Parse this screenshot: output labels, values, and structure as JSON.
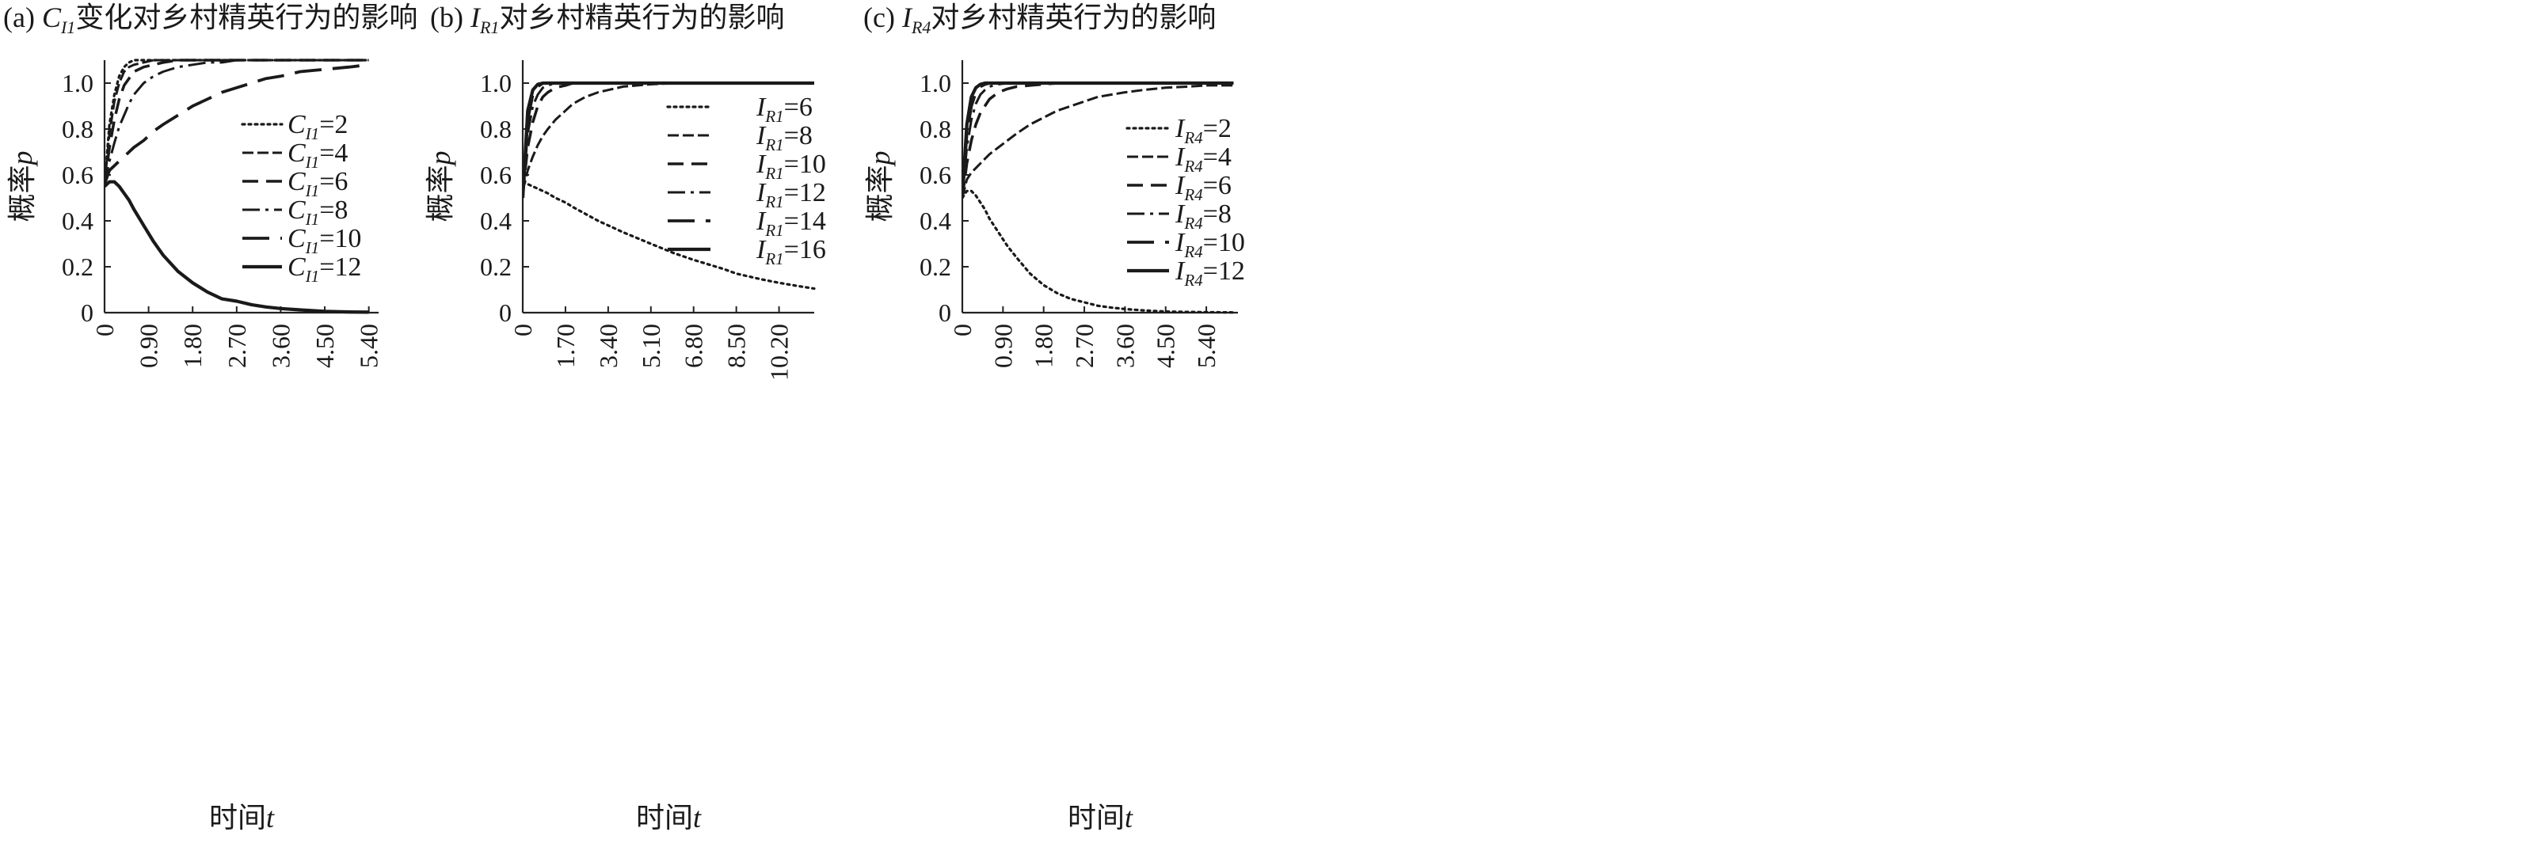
{
  "chart_data": [
    {
      "type": "line",
      "title_prefix": "(a)",
      "title_var": "C",
      "title_sub": "I1",
      "title_text": "变化对乡村精英行为的影响",
      "xlabel": "时间",
      "xlabel_var": "t",
      "ylabel": "概率",
      "ylabel_var": "p",
      "xlim": [
        0,
        5.6
      ],
      "ylim": [
        0,
        1.1
      ],
      "xticks": [
        "0",
        "0.90",
        "1.80",
        "2.70",
        "3.60",
        "4.50",
        "5.40"
      ],
      "xtick_values": [
        0,
        0.9,
        1.8,
        2.7,
        3.6,
        4.5,
        5.4
      ],
      "yticks": [
        "0",
        "0.2",
        "0.4",
        "0.6",
        "0.8",
        "1.0"
      ],
      "ytick_values": [
        0,
        0.2,
        0.4,
        0.6,
        0.8,
        1.0
      ],
      "legend_position": "center-right",
      "x": [
        0,
        0.1,
        0.2,
        0.3,
        0.4,
        0.5,
        0.6,
        0.8,
        1.0,
        1.2,
        1.5,
        1.8,
        2.1,
        2.4,
        2.7,
        3.0,
        3.3,
        3.6,
        4.0,
        4.5,
        5.0,
        5.4
      ],
      "series": [
        {
          "name": "=2",
          "label_var": "C",
          "label_sub": "I1",
          "style": "dotted",
          "values": [
            0.56,
            0.82,
            0.95,
            1.03,
            1.07,
            1.09,
            1.1,
            1.1,
            1.1,
            1.1,
            1.1,
            1.1,
            1.1,
            1.1,
            1.1,
            1.1,
            1.1,
            1.1,
            1.1,
            1.1,
            1.1,
            1.1
          ]
        },
        {
          "name": "=4",
          "label_var": "C",
          "label_sub": "I1",
          "style": "dashed-fine",
          "values": [
            0.56,
            0.78,
            0.92,
            1.0,
            1.05,
            1.07,
            1.08,
            1.09,
            1.1,
            1.1,
            1.1,
            1.1,
            1.1,
            1.1,
            1.1,
            1.1,
            1.1,
            1.1,
            1.1,
            1.1,
            1.1,
            1.1
          ]
        },
        {
          "name": "=6",
          "label_var": "C",
          "label_sub": "I1",
          "style": "dashed",
          "values": [
            0.56,
            0.72,
            0.84,
            0.93,
            0.99,
            1.02,
            1.05,
            1.07,
            1.08,
            1.09,
            1.1,
            1.1,
            1.1,
            1.1,
            1.1,
            1.1,
            1.1,
            1.1,
            1.1,
            1.1,
            1.1,
            1.1
          ]
        },
        {
          "name": "=8",
          "label_var": "C",
          "label_sub": "I1",
          "style": "dashdot",
          "values": [
            0.56,
            0.66,
            0.74,
            0.81,
            0.86,
            0.91,
            0.95,
            1.0,
            1.03,
            1.05,
            1.07,
            1.08,
            1.09,
            1.09,
            1.1,
            1.1,
            1.1,
            1.1,
            1.1,
            1.1,
            1.1,
            1.1
          ]
        },
        {
          "name": "=10",
          "label_var": "C",
          "label_sub": "I1",
          "style": "longdash",
          "values": [
            0.56,
            0.62,
            0.64,
            0.66,
            0.68,
            0.7,
            0.72,
            0.75,
            0.79,
            0.82,
            0.86,
            0.9,
            0.93,
            0.96,
            0.98,
            1.0,
            1.02,
            1.03,
            1.05,
            1.06,
            1.07,
            1.08
          ]
        },
        {
          "name": "=12",
          "label_var": "C",
          "label_sub": "I1",
          "style": "solid",
          "values": [
            0.55,
            0.57,
            0.57,
            0.55,
            0.52,
            0.49,
            0.45,
            0.38,
            0.31,
            0.25,
            0.18,
            0.13,
            0.09,
            0.06,
            0.05,
            0.035,
            0.025,
            0.018,
            0.012,
            0.006,
            0.003,
            0.002
          ]
        }
      ]
    },
    {
      "type": "line",
      "title_prefix": "(b)",
      "title_var": "I",
      "title_sub": "R1",
      "title_text": "对乡村精英行为的影响",
      "xlabel": "时间",
      "xlabel_var": "t",
      "ylabel": "概率",
      "ylabel_var": "p",
      "xlim": [
        0,
        11.6
      ],
      "ylim": [
        0,
        1.1
      ],
      "xticks": [
        "0",
        "1.70",
        "3.40",
        "5.10",
        "6.80",
        "8.50",
        "10.20"
      ],
      "xtick_values": [
        0,
        1.7,
        3.4,
        5.1,
        6.8,
        8.5,
        10.2
      ],
      "yticks": [
        "0",
        "0.2",
        "0.4",
        "0.6",
        "0.8",
        "1.0"
      ],
      "ytick_values": [
        0,
        0.2,
        0.4,
        0.6,
        0.8,
        1.0
      ],
      "legend_position": "top-right",
      "x": [
        0,
        0.2,
        0.4,
        0.6,
        0.8,
        1.0,
        1.3,
        1.7,
        2.0,
        2.5,
        3.0,
        3.4,
        4.0,
        5.1,
        6.0,
        6.8,
        8.0,
        8.5,
        9.5,
        10.2,
        11.0,
        11.6
      ],
      "series": [
        {
          "name": "=6",
          "label_var": "I",
          "label_sub": "R1",
          "style": "dotted",
          "values": [
            0.57,
            0.56,
            0.55,
            0.54,
            0.53,
            0.52,
            0.5,
            0.48,
            0.46,
            0.43,
            0.4,
            0.38,
            0.35,
            0.3,
            0.26,
            0.23,
            0.19,
            0.17,
            0.145,
            0.13,
            0.115,
            0.105
          ]
        },
        {
          "name": "=8",
          "label_var": "I",
          "label_sub": "R1",
          "style": "dashed-fine",
          "values": [
            0.53,
            0.62,
            0.68,
            0.73,
            0.77,
            0.8,
            0.84,
            0.88,
            0.91,
            0.94,
            0.96,
            0.97,
            0.985,
            0.995,
            1.0,
            1.0,
            1.0,
            1.0,
            1.0,
            1.0,
            1.0,
            1.0
          ]
        },
        {
          "name": "=10",
          "label_var": "I",
          "label_sub": "R1",
          "style": "dashed",
          "values": [
            0.52,
            0.72,
            0.83,
            0.9,
            0.94,
            0.96,
            0.98,
            0.99,
            1.0,
            1.0,
            1.0,
            1.0,
            1.0,
            1.0,
            1.0,
            1.0,
            1.0,
            1.0,
            1.0,
            1.0,
            1.0,
            1.0
          ]
        },
        {
          "name": "=12",
          "label_var": "I",
          "label_sub": "R1",
          "style": "dashdot",
          "values": [
            0.51,
            0.78,
            0.9,
            0.95,
            0.98,
            0.99,
            1.0,
            1.0,
            1.0,
            1.0,
            1.0,
            1.0,
            1.0,
            1.0,
            1.0,
            1.0,
            1.0,
            1.0,
            1.0,
            1.0,
            1.0,
            1.0
          ]
        },
        {
          "name": "=14",
          "label_var": "I",
          "label_sub": "R1",
          "style": "longdash",
          "values": [
            0.5,
            0.84,
            0.95,
            0.985,
            1.0,
            1.0,
            1.0,
            1.0,
            1.0,
            1.0,
            1.0,
            1.0,
            1.0,
            1.0,
            1.0,
            1.0,
            1.0,
            1.0,
            1.0,
            1.0,
            1.0,
            1.0
          ]
        },
        {
          "name": "=16",
          "label_var": "I",
          "label_sub": "R1",
          "style": "solid",
          "values": [
            0.5,
            0.88,
            0.97,
            0.995,
            1.0,
            1.0,
            1.0,
            1.0,
            1.0,
            1.0,
            1.0,
            1.0,
            1.0,
            1.0,
            1.0,
            1.0,
            1.0,
            1.0,
            1.0,
            1.0,
            1.0,
            1.0
          ]
        }
      ]
    },
    {
      "type": "line",
      "title_prefix": "(c)",
      "title_var": "I",
      "title_sub": "R4",
      "title_text": "对乡村精英行为的影响",
      "xlabel": "时间",
      "xlabel_var": "t",
      "ylabel": "概率",
      "ylabel_var": "p",
      "xlim": [
        0,
        6.1
      ],
      "ylim": [
        0,
        1.1
      ],
      "xticks": [
        "0",
        "0.90",
        "1.80",
        "2.70",
        "3.60",
        "4.50",
        "5.40"
      ],
      "xtick_values": [
        0,
        0.9,
        1.8,
        2.7,
        3.6,
        4.5,
        5.4
      ],
      "yticks": [
        "0",
        "0.2",
        "0.4",
        "0.6",
        "0.8",
        "1.0"
      ],
      "ytick_values": [
        0,
        0.2,
        0.4,
        0.6,
        0.8,
        1.0
      ],
      "legend_position": "center-right",
      "x": [
        0,
        0.1,
        0.2,
        0.3,
        0.4,
        0.5,
        0.6,
        0.8,
        1.0,
        1.2,
        1.5,
        1.8,
        2.1,
        2.4,
        2.7,
        3.0,
        3.3,
        3.6,
        4.0,
        4.5,
        5.0,
        5.4,
        6.0
      ],
      "series": [
        {
          "name": "=2",
          "label_var": "I",
          "label_sub": "R4",
          "style": "dotted",
          "values": [
            0.5,
            0.53,
            0.53,
            0.51,
            0.48,
            0.45,
            0.41,
            0.35,
            0.29,
            0.24,
            0.17,
            0.12,
            0.085,
            0.06,
            0.045,
            0.03,
            0.022,
            0.016,
            0.01,
            0.005,
            0.003,
            0.002,
            0.001
          ]
        },
        {
          "name": "=4",
          "label_var": "I",
          "label_sub": "R4",
          "style": "dashed-fine",
          "values": [
            0.5,
            0.58,
            0.61,
            0.63,
            0.65,
            0.67,
            0.69,
            0.72,
            0.75,
            0.78,
            0.82,
            0.85,
            0.88,
            0.9,
            0.92,
            0.94,
            0.95,
            0.96,
            0.97,
            0.98,
            0.985,
            0.99,
            0.99
          ]
        },
        {
          "name": "=6",
          "label_var": "I",
          "label_sub": "R4",
          "style": "dashed",
          "values": [
            0.5,
            0.65,
            0.75,
            0.82,
            0.87,
            0.9,
            0.93,
            0.96,
            0.975,
            0.985,
            0.99,
            0.995,
            1.0,
            1.0,
            1.0,
            1.0,
            1.0,
            1.0,
            1.0,
            1.0,
            1.0,
            1.0,
            1.0
          ]
        },
        {
          "name": "=8",
          "label_var": "I",
          "label_sub": "R4",
          "style": "dashdot",
          "values": [
            0.5,
            0.72,
            0.84,
            0.91,
            0.95,
            0.97,
            0.985,
            0.995,
            1.0,
            1.0,
            1.0,
            1.0,
            1.0,
            1.0,
            1.0,
            1.0,
            1.0,
            1.0,
            1.0,
            1.0,
            1.0,
            1.0,
            1.0
          ]
        },
        {
          "name": "=10",
          "label_var": "I",
          "label_sub": "R4",
          "style": "longdash",
          "values": [
            0.5,
            0.78,
            0.9,
            0.96,
            0.985,
            0.995,
            1.0,
            1.0,
            1.0,
            1.0,
            1.0,
            1.0,
            1.0,
            1.0,
            1.0,
            1.0,
            1.0,
            1.0,
            1.0,
            1.0,
            1.0,
            1.0,
            1.0
          ]
        },
        {
          "name": "=12",
          "label_var": "I",
          "label_sub": "R4",
          "style": "solid",
          "values": [
            0.5,
            0.82,
            0.94,
            0.98,
            0.995,
            1.0,
            1.0,
            1.0,
            1.0,
            1.0,
            1.0,
            1.0,
            1.0,
            1.0,
            1.0,
            1.0,
            1.0,
            1.0,
            1.0,
            1.0,
            1.0,
            1.0,
            1.0
          ]
        }
      ]
    }
  ]
}
